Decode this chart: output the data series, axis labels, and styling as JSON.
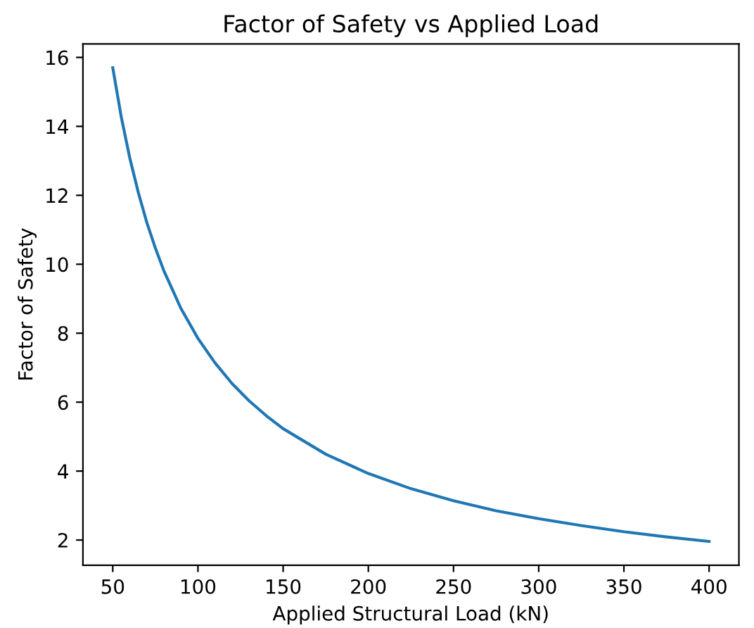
{
  "chart_data": {
    "type": "line",
    "title": "Factor of Safety vs Applied Load",
    "xlabel": "Applied Structural Load (kN)",
    "ylabel": "Factor of Safety",
    "x": [
      50,
      55,
      60,
      65,
      70,
      75,
      80,
      90,
      100,
      110,
      120,
      130,
      140,
      150,
      175,
      200,
      225,
      250,
      275,
      300,
      325,
      350,
      375,
      400
    ],
    "series": [
      {
        "color": "#1f77b4",
        "values": [
          15.7,
          14.27,
          13.08,
          12.08,
          11.21,
          10.47,
          9.81,
          8.72,
          7.85,
          7.14,
          6.54,
          6.04,
          5.61,
          5.23,
          4.49,
          3.93,
          3.49,
          3.14,
          2.85,
          2.62,
          2.42,
          2.24,
          2.09,
          1.96
        ]
      }
    ],
    "xlim": [
      32.5,
      417.5
    ],
    "ylim": [
      1.27,
      16.39
    ],
    "xticks": [
      50,
      100,
      150,
      200,
      250,
      300,
      350,
      400
    ],
    "yticks": [
      2,
      4,
      6,
      8,
      10,
      12,
      14,
      16
    ],
    "grid": false
  }
}
